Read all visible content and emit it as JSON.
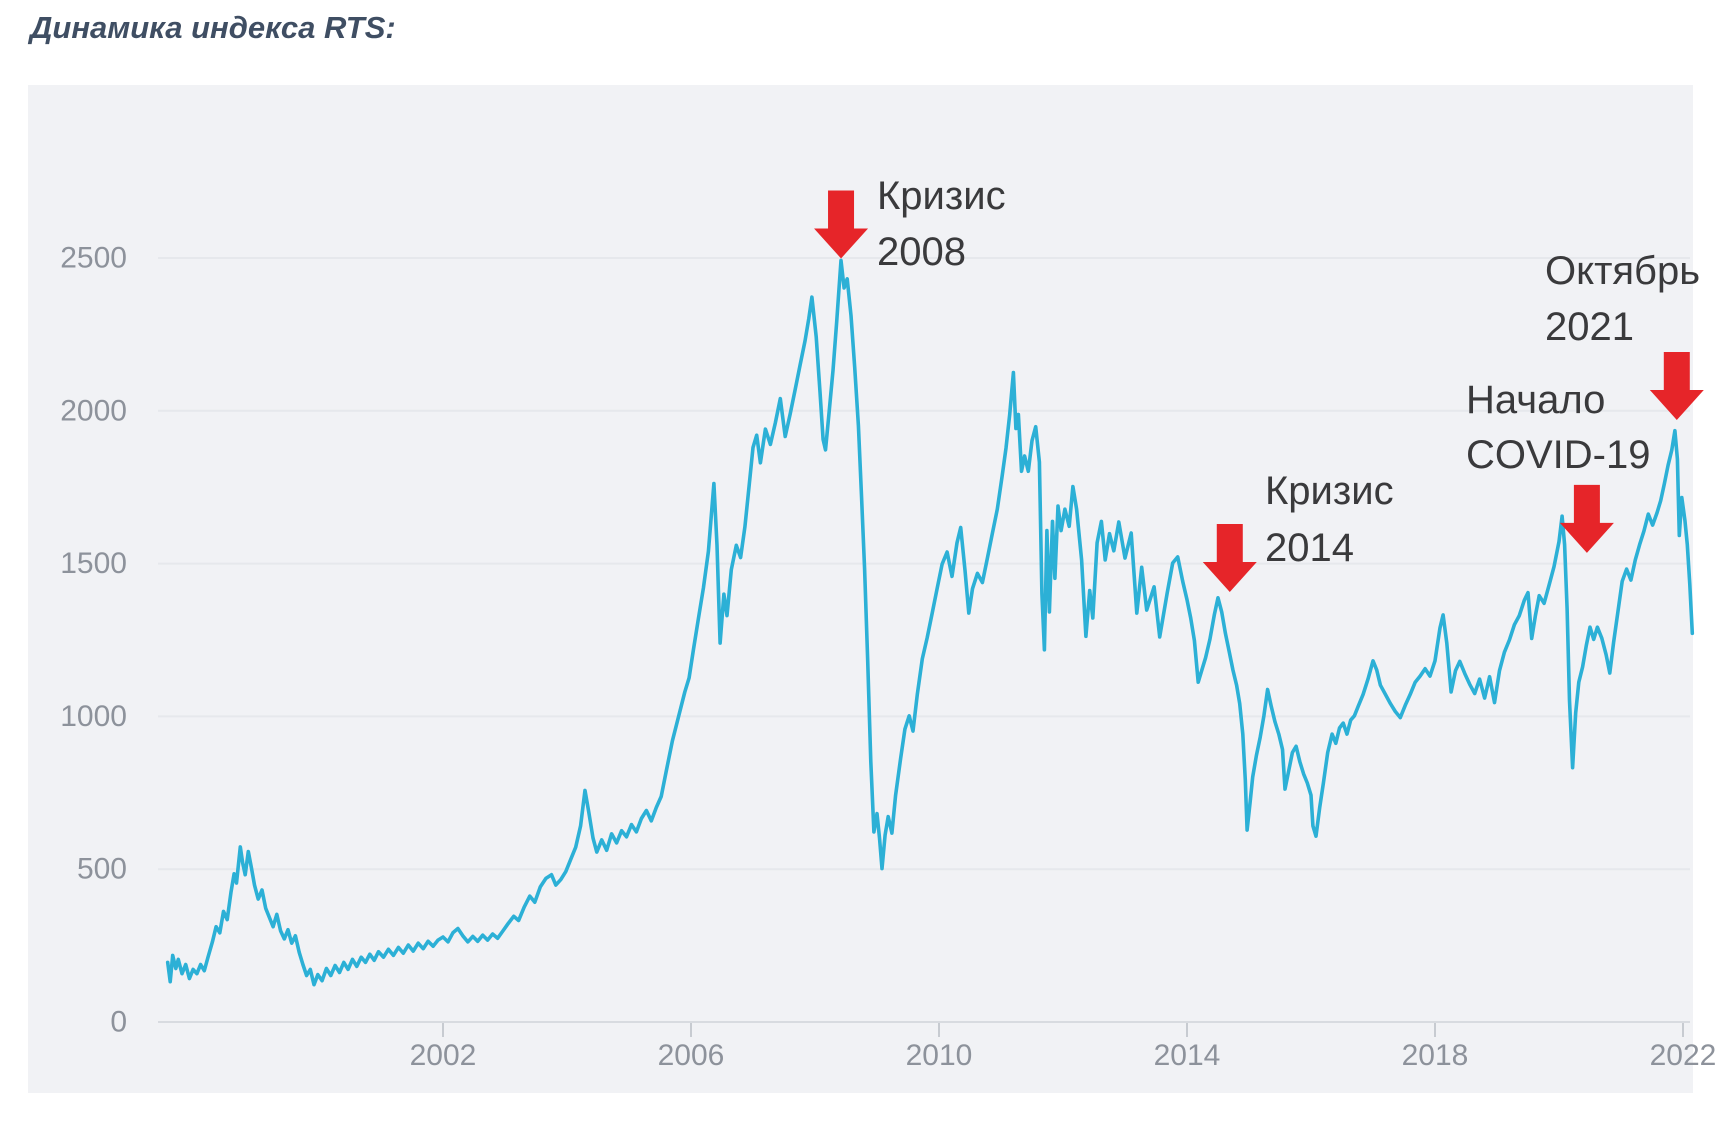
{
  "title": "Динамика индекса RTS:",
  "colors": {
    "line": "#2cb0d6",
    "arrow": "#e62529",
    "panel_bg": "#f1f2f5",
    "grid": "#e6e8ec",
    "axis": "#d8dbe0",
    "tick": "#c7cbd1",
    "tick_label": "#8d929b",
    "annotation_text": "#3a3a3c",
    "title": "#3f4e63"
  },
  "chart_data": {
    "type": "line",
    "title": "Динамика индекса RTS:",
    "series_name": "Индекс RTS",
    "xlabel": "",
    "ylabel": "",
    "x_ticks": [
      "2002",
      "2006",
      "2010",
      "2014",
      "2018",
      "2022"
    ],
    "y_ticks": [
      "0",
      "500",
      "1000",
      "1500",
      "2000",
      "2500"
    ],
    "y_tick_values": [
      0,
      500,
      1000,
      1500,
      2000,
      2500
    ],
    "x_tick_values": [
      2002,
      2006,
      2010,
      2014,
      2018,
      2022
    ],
    "xlim": [
      1997.35,
      2022.6
    ],
    "ylim": [
      0,
      2820
    ],
    "grid": "horizontal",
    "legend": "none",
    "annotations": [
      {
        "lines": [
          "Кризис",
          "2008"
        ],
        "target": {
          "year": 2008.42,
          "value": 2492
        }
      },
      {
        "lines": [
          "Кризис",
          "2014"
        ],
        "target": {
          "year": 2014.69,
          "value": 1407
        }
      },
      {
        "lines": [
          "Начало",
          "COVID-19"
        ],
        "target": {
          "year": 2020.45,
          "value": 1535
        }
      },
      {
        "lines": [
          "Октябрь",
          "2021"
        ],
        "target": {
          "year": 2021.9,
          "value": 1957
        }
      }
    ],
    "points": [
      [
        1997.56,
        195
      ],
      [
        1997.6,
        132
      ],
      [
        1997.64,
        218
      ],
      [
        1997.69,
        175
      ],
      [
        1997.73,
        205
      ],
      [
        1997.79,
        158
      ],
      [
        1997.85,
        188
      ],
      [
        1997.91,
        142
      ],
      [
        1997.97,
        172
      ],
      [
        1998.03,
        158
      ],
      [
        1998.09,
        188
      ],
      [
        1998.15,
        168
      ],
      [
        1998.21,
        212
      ],
      [
        1998.28,
        262
      ],
      [
        1998.34,
        312
      ],
      [
        1998.4,
        292
      ],
      [
        1998.46,
        362
      ],
      [
        1998.52,
        335
      ],
      [
        1998.58,
        425
      ],
      [
        1998.63,
        485
      ],
      [
        1998.67,
        455
      ],
      [
        1998.73,
        573
      ],
      [
        1998.77,
        520
      ],
      [
        1998.81,
        482
      ],
      [
        1998.86,
        558
      ],
      [
        1998.91,
        505
      ],
      [
        1998.96,
        448
      ],
      [
        1999.02,
        402
      ],
      [
        1999.08,
        432
      ],
      [
        1999.14,
        372
      ],
      [
        1999.2,
        342
      ],
      [
        1999.26,
        312
      ],
      [
        1999.32,
        352
      ],
      [
        1999.38,
        298
      ],
      [
        1999.44,
        272
      ],
      [
        1999.5,
        302
      ],
      [
        1999.56,
        258
      ],
      [
        1999.62,
        282
      ],
      [
        1999.68,
        228
      ],
      [
        1999.74,
        188
      ],
      [
        1999.8,
        152
      ],
      [
        1999.86,
        172
      ],
      [
        1999.92,
        122
      ],
      [
        1999.98,
        155
      ],
      [
        2000.05,
        135
      ],
      [
        2000.12,
        175
      ],
      [
        2000.19,
        152
      ],
      [
        2000.26,
        185
      ],
      [
        2000.33,
        162
      ],
      [
        2000.4,
        195
      ],
      [
        2000.47,
        172
      ],
      [
        2000.54,
        205
      ],
      [
        2000.61,
        182
      ],
      [
        2000.68,
        212
      ],
      [
        2000.75,
        195
      ],
      [
        2000.82,
        222
      ],
      [
        2000.89,
        202
      ],
      [
        2000.96,
        230
      ],
      [
        2001.04,
        212
      ],
      [
        2001.12,
        238
      ],
      [
        2001.2,
        218
      ],
      [
        2001.28,
        244
      ],
      [
        2001.36,
        225
      ],
      [
        2001.44,
        252
      ],
      [
        2001.52,
        232
      ],
      [
        2001.6,
        258
      ],
      [
        2001.68,
        240
      ],
      [
        2001.76,
        264
      ],
      [
        2001.84,
        248
      ],
      [
        2001.92,
        268
      ],
      [
        2002.0,
        278
      ],
      [
        2002.08,
        262
      ],
      [
        2002.16,
        292
      ],
      [
        2002.24,
        306
      ],
      [
        2002.32,
        282
      ],
      [
        2002.4,
        262
      ],
      [
        2002.48,
        280
      ],
      [
        2002.56,
        264
      ],
      [
        2002.64,
        284
      ],
      [
        2002.72,
        268
      ],
      [
        2002.8,
        288
      ],
      [
        2002.88,
        274
      ],
      [
        2002.96,
        296
      ],
      [
        2003.05,
        322
      ],
      [
        2003.14,
        346
      ],
      [
        2003.22,
        332
      ],
      [
        2003.31,
        376
      ],
      [
        2003.4,
        412
      ],
      [
        2003.48,
        392
      ],
      [
        2003.57,
        442
      ],
      [
        2003.66,
        470
      ],
      [
        2003.75,
        482
      ],
      [
        2003.82,
        448
      ],
      [
        2003.9,
        466
      ],
      [
        2003.98,
        492
      ],
      [
        2004.06,
        532
      ],
      [
        2004.14,
        572
      ],
      [
        2004.22,
        642
      ],
      [
        2004.29,
        758
      ],
      [
        2004.35,
        688
      ],
      [
        2004.42,
        602
      ],
      [
        2004.48,
        556
      ],
      [
        2004.56,
        596
      ],
      [
        2004.64,
        562
      ],
      [
        2004.72,
        616
      ],
      [
        2004.8,
        586
      ],
      [
        2004.88,
        626
      ],
      [
        2004.96,
        606
      ],
      [
        2005.04,
        646
      ],
      [
        2005.12,
        622
      ],
      [
        2005.2,
        666
      ],
      [
        2005.28,
        692
      ],
      [
        2005.36,
        658
      ],
      [
        2005.44,
        702
      ],
      [
        2005.52,
        738
      ],
      [
        2005.6,
        820
      ],
      [
        2005.7,
        920
      ],
      [
        2005.8,
        1000
      ],
      [
        2005.9,
        1080
      ],
      [
        2005.97,
        1126
      ],
      [
        2006.04,
        1220
      ],
      [
        2006.12,
        1320
      ],
      [
        2006.2,
        1420
      ],
      [
        2006.28,
        1540
      ],
      [
        2006.37,
        1762
      ],
      [
        2006.42,
        1560
      ],
      [
        2006.47,
        1240
      ],
      [
        2006.53,
        1400
      ],
      [
        2006.58,
        1330
      ],
      [
        2006.65,
        1480
      ],
      [
        2006.73,
        1560
      ],
      [
        2006.8,
        1520
      ],
      [
        2006.87,
        1620
      ],
      [
        2006.94,
        1760
      ],
      [
        2007.0,
        1880
      ],
      [
        2007.06,
        1920
      ],
      [
        2007.12,
        1830
      ],
      [
        2007.2,
        1940
      ],
      [
        2007.28,
        1890
      ],
      [
        2007.36,
        1960
      ],
      [
        2007.44,
        2040
      ],
      [
        2007.52,
        1916
      ],
      [
        2007.6,
        1990
      ],
      [
        2007.68,
        2070
      ],
      [
        2007.76,
        2150
      ],
      [
        2007.84,
        2230
      ],
      [
        2007.9,
        2302
      ],
      [
        2007.95,
        2372
      ],
      [
        2008.02,
        2242
      ],
      [
        2008.08,
        2062
      ],
      [
        2008.13,
        1906
      ],
      [
        2008.17,
        1872
      ],
      [
        2008.23,
        2002
      ],
      [
        2008.29,
        2132
      ],
      [
        2008.35,
        2292
      ],
      [
        2008.42,
        2492
      ],
      [
        2008.47,
        2402
      ],
      [
        2008.52,
        2432
      ],
      [
        2008.58,
        2312
      ],
      [
        2008.64,
        2142
      ],
      [
        2008.7,
        1952
      ],
      [
        2008.75,
        1722
      ],
      [
        2008.8,
        1482
      ],
      [
        2008.85,
        1182
      ],
      [
        2008.9,
        852
      ],
      [
        2008.95,
        622
      ],
      [
        2009.0,
        682
      ],
      [
        2009.04,
        602
      ],
      [
        2009.08,
        502
      ],
      [
        2009.13,
        612
      ],
      [
        2009.18,
        672
      ],
      [
        2009.24,
        618
      ],
      [
        2009.3,
        742
      ],
      [
        2009.38,
        862
      ],
      [
        2009.45,
        958
      ],
      [
        2009.52,
        1002
      ],
      [
        2009.58,
        952
      ],
      [
        2009.65,
        1072
      ],
      [
        2009.73,
        1188
      ],
      [
        2009.81,
        1258
      ],
      [
        2009.89,
        1338
      ],
      [
        2009.97,
        1418
      ],
      [
        2010.05,
        1498
      ],
      [
        2010.13,
        1538
      ],
      [
        2010.21,
        1458
      ],
      [
        2010.29,
        1568
      ],
      [
        2010.35,
        1618
      ],
      [
        2010.42,
        1478
      ],
      [
        2010.48,
        1338
      ],
      [
        2010.54,
        1418
      ],
      [
        2010.62,
        1468
      ],
      [
        2010.7,
        1438
      ],
      [
        2010.78,
        1518
      ],
      [
        2010.86,
        1598
      ],
      [
        2010.94,
        1678
      ],
      [
        2011.02,
        1788
      ],
      [
        2011.08,
        1878
      ],
      [
        2011.14,
        1988
      ],
      [
        2011.2,
        2125
      ],
      [
        2011.24,
        1942
      ],
      [
        2011.28,
        1988
      ],
      [
        2011.33,
        1802
      ],
      [
        2011.38,
        1852
      ],
      [
        2011.44,
        1802
      ],
      [
        2011.5,
        1902
      ],
      [
        2011.56,
        1948
      ],
      [
        2011.62,
        1832
      ],
      [
        2011.66,
        1402
      ],
      [
        2011.7,
        1218
      ],
      [
        2011.74,
        1608
      ],
      [
        2011.78,
        1342
      ],
      [
        2011.83,
        1638
      ],
      [
        2011.87,
        1452
      ],
      [
        2011.92,
        1688
      ],
      [
        2011.97,
        1608
      ],
      [
        2012.03,
        1678
      ],
      [
        2012.1,
        1622
      ],
      [
        2012.16,
        1752
      ],
      [
        2012.22,
        1678
      ],
      [
        2012.3,
        1512
      ],
      [
        2012.37,
        1262
      ],
      [
        2012.43,
        1412
      ],
      [
        2012.48,
        1322
      ],
      [
        2012.55,
        1568
      ],
      [
        2012.62,
        1638
      ],
      [
        2012.68,
        1512
      ],
      [
        2012.75,
        1598
      ],
      [
        2012.82,
        1542
      ],
      [
        2012.9,
        1636
      ],
      [
        2013.0,
        1518
      ],
      [
        2013.1,
        1600
      ],
      [
        2013.19,
        1338
      ],
      [
        2013.27,
        1488
      ],
      [
        2013.35,
        1348
      ],
      [
        2013.47,
        1424
      ],
      [
        2013.56,
        1260
      ],
      [
        2013.68,
        1404
      ],
      [
        2013.77,
        1502
      ],
      [
        2013.85,
        1522
      ],
      [
        2013.93,
        1442
      ],
      [
        2014.0,
        1382
      ],
      [
        2014.06,
        1322
      ],
      [
        2014.12,
        1248
      ],
      [
        2014.18,
        1112
      ],
      [
        2014.24,
        1152
      ],
      [
        2014.3,
        1192
      ],
      [
        2014.37,
        1252
      ],
      [
        2014.44,
        1332
      ],
      [
        2014.5,
        1388
      ],
      [
        2014.56,
        1342
      ],
      [
        2014.62,
        1272
      ],
      [
        2014.68,
        1212
      ],
      [
        2014.74,
        1152
      ],
      [
        2014.8,
        1102
      ],
      [
        2014.85,
        1042
      ],
      [
        2014.9,
        942
      ],
      [
        2014.94,
        792
      ],
      [
        2014.97,
        628
      ],
      [
        2015.02,
        722
      ],
      [
        2015.06,
        802
      ],
      [
        2015.12,
        872
      ],
      [
        2015.18,
        932
      ],
      [
        2015.24,
        1002
      ],
      [
        2015.3,
        1088
      ],
      [
        2015.36,
        1032
      ],
      [
        2015.42,
        982
      ],
      [
        2015.48,
        942
      ],
      [
        2015.54,
        892
      ],
      [
        2015.58,
        762
      ],
      [
        2015.64,
        822
      ],
      [
        2015.7,
        882
      ],
      [
        2015.76,
        902
      ],
      [
        2015.82,
        852
      ],
      [
        2015.88,
        812
      ],
      [
        2015.94,
        782
      ],
      [
        2016.0,
        742
      ],
      [
        2016.03,
        642
      ],
      [
        2016.08,
        608
      ],
      [
        2016.14,
        702
      ],
      [
        2016.2,
        782
      ],
      [
        2016.27,
        882
      ],
      [
        2016.34,
        942
      ],
      [
        2016.4,
        912
      ],
      [
        2016.46,
        962
      ],
      [
        2016.52,
        978
      ],
      [
        2016.58,
        942
      ],
      [
        2016.64,
        988
      ],
      [
        2016.7,
        1002
      ],
      [
        2016.76,
        1032
      ],
      [
        2016.84,
        1072
      ],
      [
        2016.92,
        1122
      ],
      [
        2017.0,
        1182
      ],
      [
        2017.06,
        1152
      ],
      [
        2017.12,
        1102
      ],
      [
        2017.2,
        1072
      ],
      [
        2017.28,
        1042
      ],
      [
        2017.36,
        1016
      ],
      [
        2017.44,
        996
      ],
      [
        2017.52,
        1036
      ],
      [
        2017.6,
        1072
      ],
      [
        2017.68,
        1112
      ],
      [
        2017.76,
        1132
      ],
      [
        2017.84,
        1156
      ],
      [
        2017.92,
        1132
      ],
      [
        2018.0,
        1182
      ],
      [
        2018.08,
        1290
      ],
      [
        2018.13,
        1332
      ],
      [
        2018.19,
        1240
      ],
      [
        2018.26,
        1080
      ],
      [
        2018.33,
        1150
      ],
      [
        2018.4,
        1180
      ],
      [
        2018.48,
        1140
      ],
      [
        2018.56,
        1105
      ],
      [
        2018.64,
        1075
      ],
      [
        2018.72,
        1122
      ],
      [
        2018.8,
        1060
      ],
      [
        2018.88,
        1130
      ],
      [
        2018.96,
        1045
      ],
      [
        2019.04,
        1150
      ],
      [
        2019.12,
        1210
      ],
      [
        2019.2,
        1250
      ],
      [
        2019.28,
        1300
      ],
      [
        2019.36,
        1330
      ],
      [
        2019.44,
        1380
      ],
      [
        2019.5,
        1405
      ],
      [
        2019.56,
        1255
      ],
      [
        2019.62,
        1330
      ],
      [
        2019.68,
        1395
      ],
      [
        2019.76,
        1370
      ],
      [
        2019.84,
        1430
      ],
      [
        2019.92,
        1490
      ],
      [
        2020.0,
        1572
      ],
      [
        2020.05,
        1655
      ],
      [
        2020.09,
        1562
      ],
      [
        2020.13,
        1352
      ],
      [
        2020.17,
        1052
      ],
      [
        2020.22,
        832
      ],
      [
        2020.27,
        1012
      ],
      [
        2020.32,
        1112
      ],
      [
        2020.38,
        1162
      ],
      [
        2020.44,
        1232
      ],
      [
        2020.5,
        1292
      ],
      [
        2020.56,
        1252
      ],
      [
        2020.62,
        1292
      ],
      [
        2020.69,
        1256
      ],
      [
        2020.76,
        1202
      ],
      [
        2020.82,
        1142
      ],
      [
        2020.88,
        1242
      ],
      [
        2020.95,
        1342
      ],
      [
        2021.02,
        1442
      ],
      [
        2021.09,
        1482
      ],
      [
        2021.16,
        1446
      ],
      [
        2021.23,
        1512
      ],
      [
        2021.3,
        1562
      ],
      [
        2021.37,
        1606
      ],
      [
        2021.44,
        1662
      ],
      [
        2021.51,
        1626
      ],
      [
        2021.58,
        1666
      ],
      [
        2021.64,
        1706
      ],
      [
        2021.7,
        1762
      ],
      [
        2021.76,
        1822
      ],
      [
        2021.82,
        1872
      ],
      [
        2021.87,
        1935
      ],
      [
        2021.91,
        1842
      ],
      [
        2021.94,
        1592
      ],
      [
        2021.98,
        1716
      ],
      [
        2022.03,
        1642
      ],
      [
        2022.07,
        1562
      ],
      [
        2022.11,
        1432
      ],
      [
        2022.15,
        1272
      ]
    ]
  }
}
